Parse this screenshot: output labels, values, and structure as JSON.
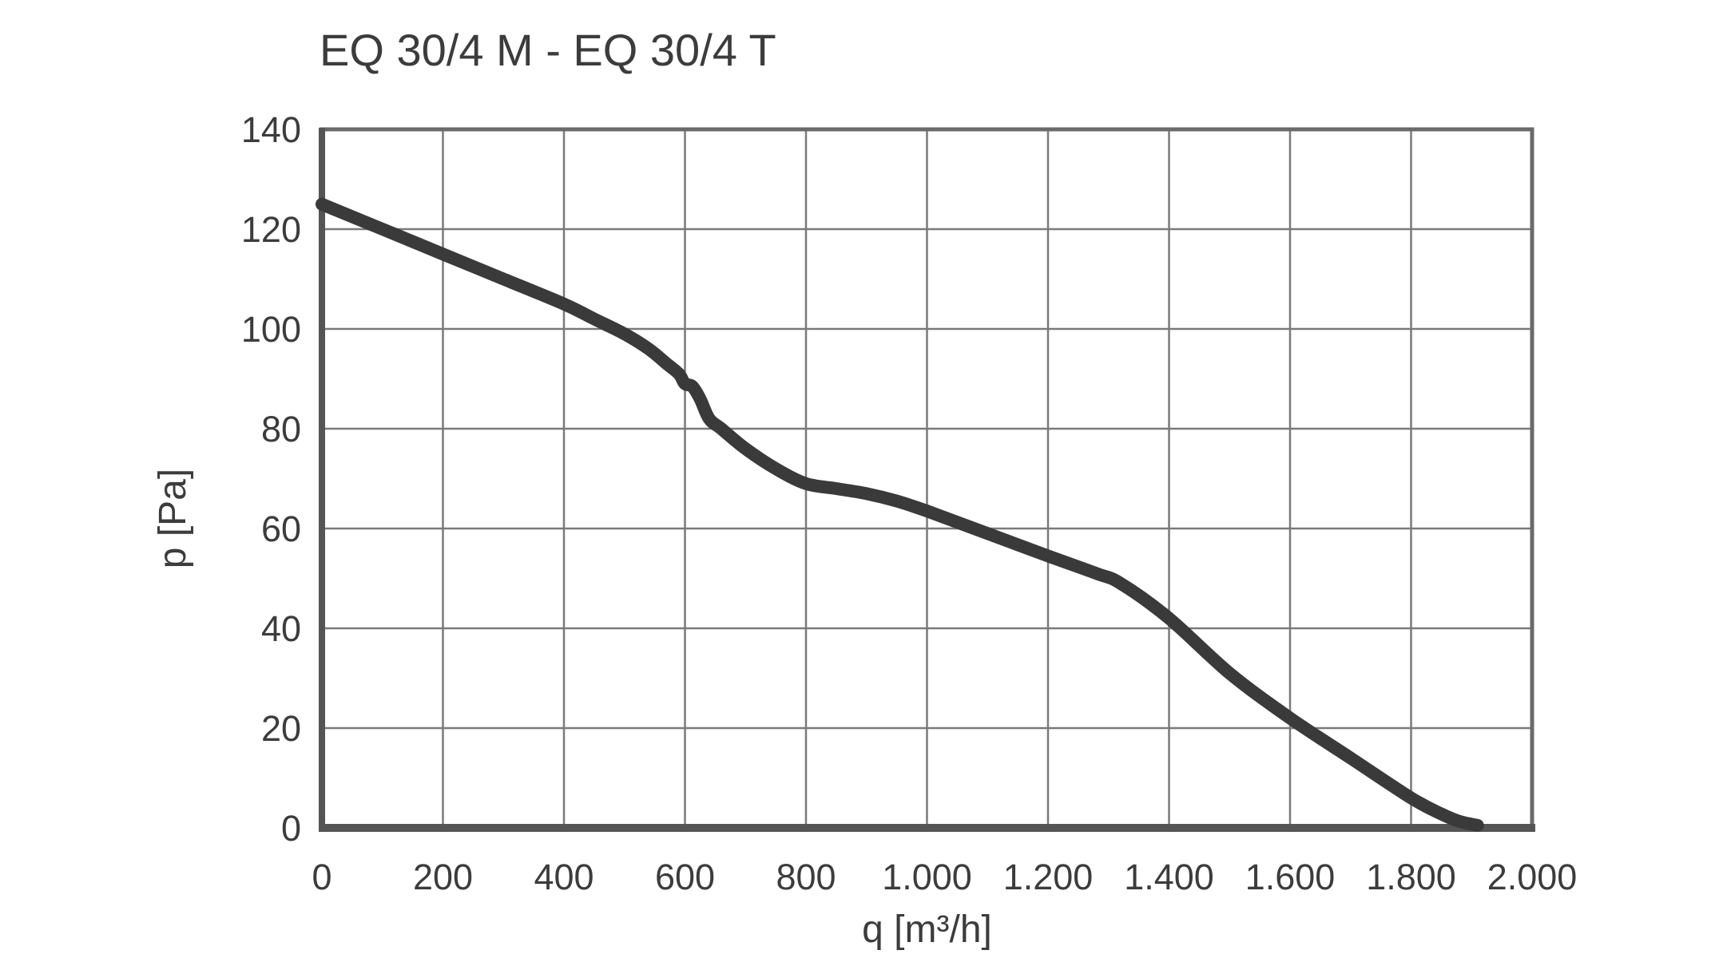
{
  "chart_data": {
    "type": "line",
    "title": "EQ 30/4 M - EQ 30/4 T",
    "xlabel": "q [m³/h]",
    "ylabel": "p [Pa]",
    "xlim": [
      0,
      2000
    ],
    "ylim": [
      0,
      140
    ],
    "grid": true,
    "x_ticks": [
      0,
      200,
      400,
      600,
      800,
      1000,
      1200,
      1400,
      1600,
      1800,
      2000
    ],
    "x_tick_labels": [
      "0",
      "200",
      "400",
      "600",
      "800",
      "1.000",
      "1.200",
      "1.400",
      "1.600",
      "1.800",
      "2.000"
    ],
    "y_ticks": [
      0,
      20,
      40,
      60,
      80,
      100,
      120,
      140
    ],
    "y_tick_labels": [
      "0",
      "20",
      "40",
      "60",
      "80",
      "100",
      "120",
      "140"
    ],
    "series": [
      {
        "name": "EQ 30/4 M - EQ 30/4 T",
        "color": "#3a3a3a",
        "x": [
          0,
          100,
          200,
          300,
          400,
          450,
          500,
          540,
          570,
          590,
          600,
          612,
          625,
          640,
          660,
          700,
          750,
          800,
          850,
          900,
          950,
          1000,
          1100,
          1200,
          1280,
          1320,
          1400,
          1500,
          1600,
          1700,
          1800,
          1850,
          1880,
          1910
        ],
        "y": [
          125,
          120,
          115,
          110,
          105,
          102,
          99,
          96,
          93,
          91,
          89,
          88.5,
          86,
          82,
          80,
          76,
          72,
          69,
          68,
          67,
          65.5,
          63.5,
          59,
          54.5,
          51,
          49,
          42,
          31,
          22,
          14,
          6,
          2.8,
          1.3,
          0.5
        ]
      }
    ]
  }
}
